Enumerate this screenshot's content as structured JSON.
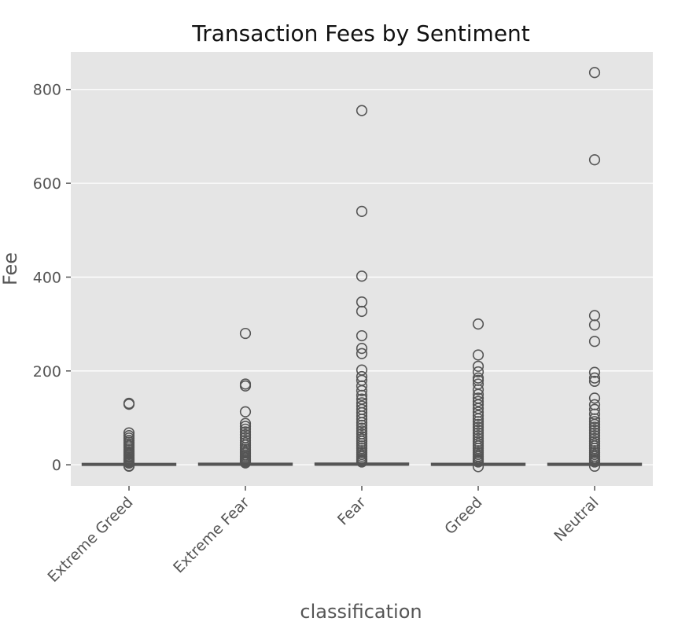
{
  "chart_data": {
    "type": "box",
    "title": "Transaction Fees by Sentiment",
    "xlabel": "classification",
    "ylabel": "Fee",
    "categories": [
      "Extreme Greed",
      "Extreme Fear",
      "Fear",
      "Greed",
      "Neutral"
    ],
    "yticks": [
      0,
      200,
      400,
      600,
      800
    ],
    "ylim": [
      -45,
      880
    ],
    "grid": true,
    "series": [
      {
        "category": "Extreme Greed",
        "q1": 0,
        "median": 0.2,
        "q3": 0.8,
        "whisker_low": -1.5,
        "whisker_high": 2.5,
        "outliers": [
          131,
          129,
          68,
          62,
          57,
          52,
          48,
          44,
          40,
          36,
          32,
          28,
          25,
          22,
          19,
          16,
          13,
          11,
          9,
          7,
          5,
          3.5,
          -2,
          -3
        ]
      },
      {
        "category": "Extreme Fear",
        "q1": 0,
        "median": 0.3,
        "q3": 1.2,
        "whisker_low": -1,
        "whisker_high": 3,
        "outliers": [
          280,
          172,
          168,
          113,
          88,
          82,
          76,
          70,
          64,
          58,
          52,
          47,
          42,
          37,
          33,
          29,
          25,
          21,
          18,
          15,
          12,
          9,
          7,
          5,
          4
        ]
      },
      {
        "category": "Fear",
        "q1": 0,
        "median": 0.5,
        "q3": 1.5,
        "whisker_low": -0.5,
        "whisker_high": 4,
        "outliers": [
          755,
          540,
          402,
          347,
          327,
          275,
          248,
          237,
          202,
          188,
          180,
          168,
          158,
          148,
          140,
          132,
          125,
          118,
          111,
          104,
          97,
          90,
          84,
          78,
          72,
          66,
          60,
          55,
          50,
          45,
          40,
          35,
          30,
          26,
          22,
          18,
          14,
          11,
          8,
          6
        ]
      },
      {
        "category": "Greed",
        "q1": -0.5,
        "median": 0,
        "q3": 1.0,
        "whisker_low": -2,
        "whisker_high": 3,
        "outliers": [
          300,
          234,
          210,
          198,
          185,
          180,
          172,
          160,
          150,
          142,
          135,
          128,
          120,
          112,
          105,
          98,
          92,
          86,
          80,
          74,
          68,
          62,
          56,
          50,
          45,
          40,
          35,
          30,
          26,
          22,
          18,
          14,
          11,
          8,
          6,
          -4
        ]
      },
      {
        "category": "Neutral",
        "q1": -0.5,
        "median": 0,
        "q3": 1.0,
        "whisker_low": -2,
        "whisker_high": 3,
        "outliers": [
          836,
          650,
          318,
          298,
          263,
          197,
          185,
          178,
          142,
          128,
          118,
          108,
          98,
          92,
          86,
          80,
          74,
          68,
          62,
          56,
          50,
          45,
          40,
          35,
          30,
          26,
          22,
          18,
          14,
          11,
          8,
          6,
          -3
        ]
      }
    ]
  }
}
